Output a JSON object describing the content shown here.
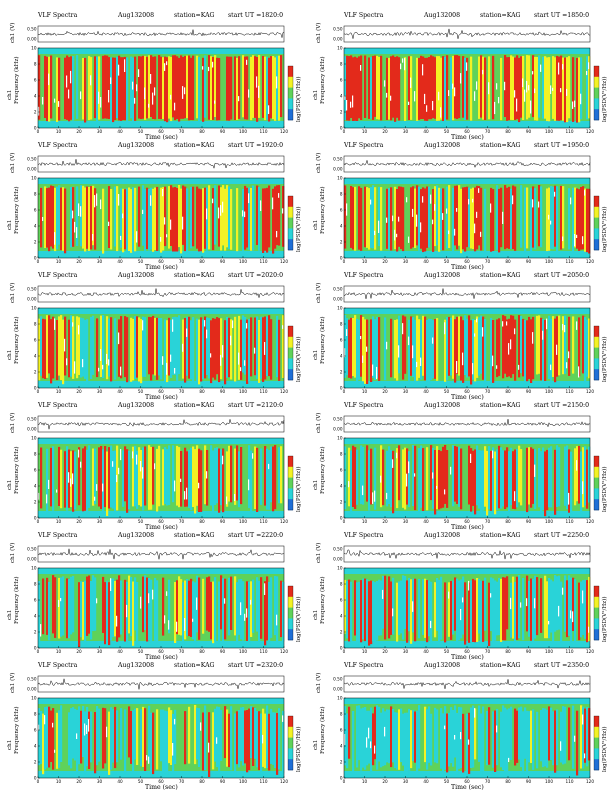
{
  "header": {
    "label": "VLF Spectra",
    "date": "Aug132008",
    "station": "station=KAG",
    "start_prefix": "start  UT  ="
  },
  "axes": {
    "ch1_label": "ch1 (V)",
    "freq_label": "Frequency (kHz)",
    "freq_label_prefix": "ch1",
    "colorbar_label": "log(PSD(V²/Hz))",
    "time_label": "Time (sec)"
  },
  "colors": {
    "low": "#1f6fd6",
    "cyan": "#29d3d8",
    "green": "#5fd25a",
    "yellow": "#f3f224",
    "red": "#e32a1b",
    "white": "#ffffff"
  },
  "chart_data": [
    {
      "type": "heatmap",
      "start_ut": "1820:0",
      "x_ticks": [
        0,
        10,
        20,
        30,
        40,
        50,
        60,
        70,
        80,
        90,
        100,
        110,
        120
      ],
      "y_ticks": [
        0,
        2,
        4,
        6,
        8,
        10
      ],
      "waveform_ticks": [
        "0.00",
        "0.50"
      ],
      "xlim": [
        0,
        120
      ],
      "ylim": [
        0,
        10
      ]
    },
    {
      "type": "heatmap",
      "start_ut": "1850:0",
      "x_ticks": [
        0,
        10,
        20,
        30,
        40,
        50,
        60,
        70,
        80,
        90,
        100,
        110,
        120
      ],
      "y_ticks": [
        0,
        2,
        4,
        6,
        8,
        10
      ],
      "waveform_ticks": [
        "0.00",
        "0.50"
      ],
      "xlim": [
        0,
        120
      ],
      "ylim": [
        0,
        10
      ]
    },
    {
      "type": "heatmap",
      "start_ut": "1920:0",
      "x_ticks": [
        0,
        10,
        20,
        30,
        40,
        50,
        60,
        70,
        80,
        90,
        100,
        110,
        120
      ],
      "y_ticks": [
        0,
        2,
        4,
        6,
        8,
        10
      ],
      "waveform_ticks": [
        "0.00",
        "0.50"
      ],
      "xlim": [
        0,
        120
      ],
      "ylim": [
        0,
        10
      ]
    },
    {
      "type": "heatmap",
      "start_ut": "1950:0",
      "x_ticks": [
        0,
        10,
        20,
        30,
        40,
        50,
        60,
        70,
        80,
        90,
        100,
        110,
        120
      ],
      "y_ticks": [
        0,
        2,
        4,
        6,
        8,
        10
      ],
      "waveform_ticks": [
        "0.00",
        "0.50"
      ],
      "xlim": [
        0,
        120
      ],
      "ylim": [
        0,
        10
      ]
    },
    {
      "type": "heatmap",
      "start_ut": "2020:0",
      "x_ticks": [
        0,
        10,
        20,
        30,
        40,
        50,
        60,
        70,
        80,
        90,
        100,
        110,
        120
      ],
      "y_ticks": [
        0,
        2,
        4,
        6,
        8,
        10
      ],
      "waveform_ticks": [
        "0.00",
        "0.50"
      ],
      "xlim": [
        0,
        120
      ],
      "ylim": [
        0,
        10
      ]
    },
    {
      "type": "heatmap",
      "start_ut": "2050:0",
      "x_ticks": [
        0,
        10,
        20,
        30,
        40,
        50,
        60,
        70,
        80,
        90,
        100,
        110,
        120
      ],
      "y_ticks": [
        0,
        2,
        4,
        6,
        8,
        10
      ],
      "waveform_ticks": [
        "0.00",
        "0.50"
      ],
      "xlim": [
        0,
        120
      ],
      "ylim": [
        0,
        10
      ]
    },
    {
      "type": "heatmap",
      "start_ut": "2120:0",
      "x_ticks": [
        0,
        10,
        20,
        30,
        40,
        50,
        60,
        70,
        80,
        90,
        100,
        110,
        120
      ],
      "y_ticks": [
        0,
        2,
        4,
        6,
        8,
        10
      ],
      "waveform_ticks": [
        "0.00",
        "0.50"
      ],
      "xlim": [
        0,
        120
      ],
      "ylim": [
        0,
        10
      ]
    },
    {
      "type": "heatmap",
      "start_ut": "2150:0",
      "x_ticks": [
        0,
        10,
        20,
        30,
        40,
        50,
        60,
        70,
        80,
        90,
        100,
        110,
        120
      ],
      "y_ticks": [
        0,
        2,
        4,
        6,
        8,
        10
      ],
      "waveform_ticks": [
        "0.00",
        "0.50"
      ],
      "xlim": [
        0,
        120
      ],
      "ylim": [
        0,
        10
      ]
    },
    {
      "type": "heatmap",
      "start_ut": "2220:0",
      "x_ticks": [
        0,
        10,
        20,
        30,
        40,
        50,
        60,
        70,
        80,
        90,
        100,
        110,
        120
      ],
      "y_ticks": [
        0,
        2,
        4,
        6,
        8,
        10
      ],
      "waveform_ticks": [
        "0.00",
        "0.50"
      ],
      "xlim": [
        0,
        120
      ],
      "ylim": [
        0,
        10
      ]
    },
    {
      "type": "heatmap",
      "start_ut": "2250:0",
      "x_ticks": [
        0,
        10,
        20,
        30,
        40,
        50,
        60,
        70,
        80,
        90,
        100,
        110,
        120
      ],
      "y_ticks": [
        0,
        2,
        4,
        6,
        8,
        10
      ],
      "waveform_ticks": [
        "0.00",
        "0.50"
      ],
      "xlim": [
        0,
        120
      ],
      "ylim": [
        0,
        10
      ]
    },
    {
      "type": "heatmap",
      "start_ut": "2320:0",
      "x_ticks": [
        0,
        10,
        20,
        30,
        40,
        50,
        60,
        70,
        80,
        90,
        100,
        110,
        120
      ],
      "y_ticks": [
        0,
        2,
        4,
        6,
        8,
        10
      ],
      "waveform_ticks": [
        "0.00",
        "0.50"
      ],
      "xlim": [
        0,
        120
      ],
      "ylim": [
        0,
        10
      ]
    },
    {
      "type": "heatmap",
      "start_ut": "2350:0",
      "x_ticks": [
        0,
        10,
        20,
        30,
        40,
        50,
        60,
        70,
        80,
        90,
        100,
        110,
        120
      ],
      "y_ticks": [
        0,
        2,
        4,
        6,
        8,
        10
      ],
      "waveform_ticks": [
        "0.00",
        "0.50"
      ],
      "xlim": [
        0,
        120
      ],
      "ylim": [
        0,
        10
      ]
    }
  ]
}
